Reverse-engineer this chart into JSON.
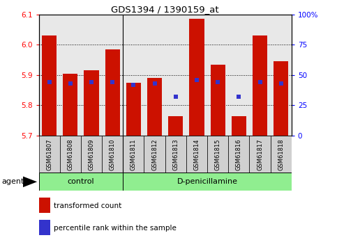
{
  "title": "GDS1394 / 1390159_at",
  "categories": [
    "GSM61807",
    "GSM61808",
    "GSM61809",
    "GSM61810",
    "GSM61811",
    "GSM61812",
    "GSM61813",
    "GSM61814",
    "GSM61815",
    "GSM61816",
    "GSM61817",
    "GSM61818"
  ],
  "red_values": [
    6.03,
    5.905,
    5.915,
    5.985,
    5.875,
    5.89,
    5.765,
    6.085,
    5.935,
    5.765,
    6.03,
    5.945
  ],
  "blue_pct": [
    44,
    43,
    44,
    44,
    42,
    43,
    32,
    46,
    44,
    32,
    44,
    43
  ],
  "ylim_left": [
    5.7,
    6.1
  ],
  "ylim_right": [
    0,
    100
  ],
  "yticks_left": [
    5.7,
    5.8,
    5.9,
    6.0,
    6.1
  ],
  "yticks_right": [
    0,
    25,
    50,
    75,
    100
  ],
  "ytick_labels_right": [
    "0",
    "25",
    "50",
    "75",
    "100%"
  ],
  "control_count": 4,
  "group_labels": [
    "control",
    "D-penicillamine"
  ],
  "agent_label": "agent",
  "legend_red": "transformed count",
  "legend_blue": "percentile rank within the sample",
  "bar_width": 0.7,
  "red_color": "#CC1100",
  "blue_color": "#3333CC",
  "green_fill": "#90EE90",
  "bar_bottom": 5.7,
  "blue_dot_size": 18,
  "grid_linestyle": "dotted"
}
